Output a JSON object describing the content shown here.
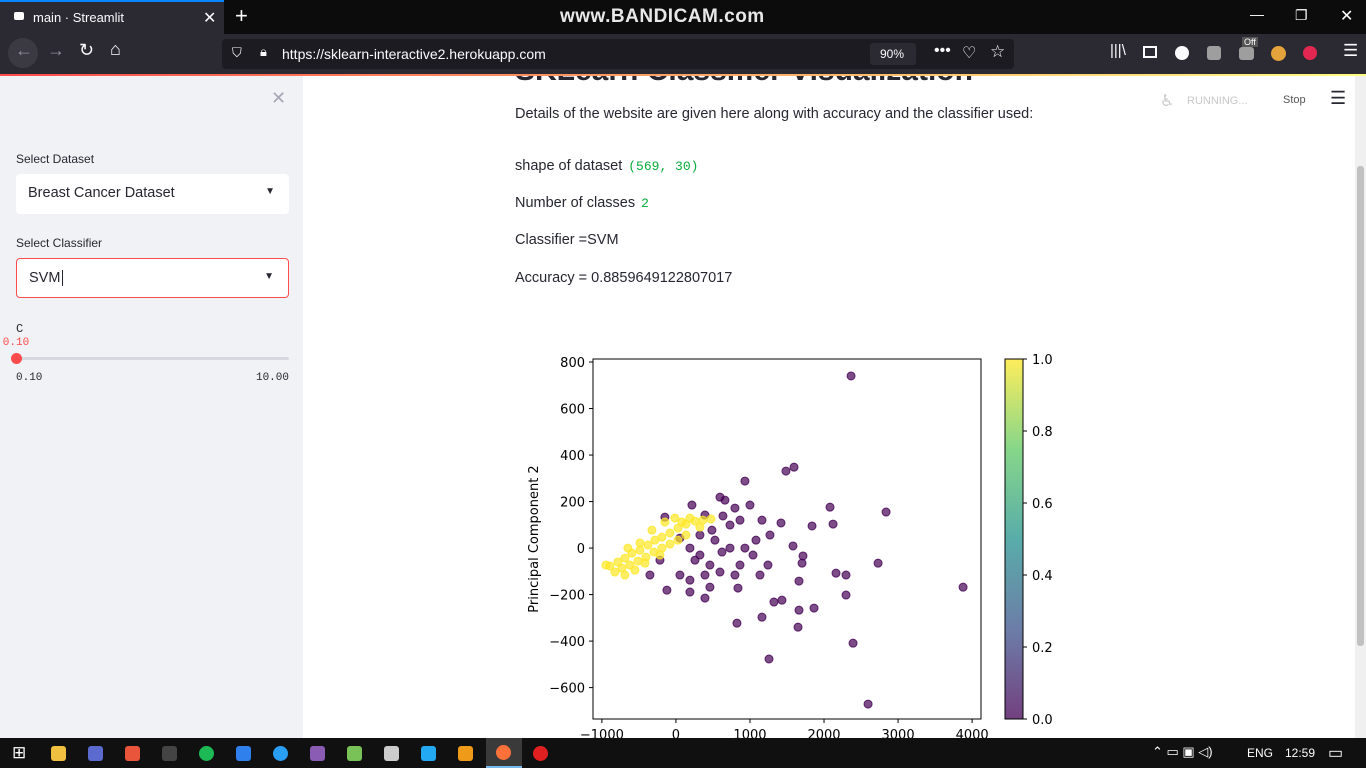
{
  "browser": {
    "tab_title": "main · Streamlit",
    "watermark": "www.BANDICAM.com",
    "url": "https://sklearn-interactive2.herokuapp.com",
    "zoom": "90%",
    "badge": "Off"
  },
  "sidebar": {
    "dataset_label": "Select Dataset",
    "dataset_value": "Breast Cancer Dataset",
    "classifier_label": "Select Classifier",
    "classifier_value": "SVM",
    "slider": {
      "label": "C",
      "value": {
        "value": 0.1,
        "label": "0.10"
      },
      "min": {
        "value": 0.1,
        "label": "0.10"
      },
      "max": {
        "value": 10,
        "label": "10.00"
      }
    }
  },
  "main": {
    "title": "SKLearn Classifier Visualization",
    "status": "RUNNING...",
    "stop": "Stop",
    "description": "Details of the website are given here along with accuracy and the classifier used:",
    "shape_label": "shape of dataset",
    "shape_value": "(569, 30)",
    "classes_label": "Number of classes",
    "classes_value": "2",
    "classifier": "Classifier =SVM",
    "accuracy": "Accuracy = 0.8859649122807017"
  },
  "taskbar": {
    "language": "ENG",
    "time": "12:59"
  },
  "chart_data": {
    "type": "scatter",
    "ylabel": "Principal Component 2",
    "xlim": [
      -1120,
      4120
    ],
    "ylim": [
      -735,
      813
    ],
    "xticks": [
      {
        "value": -1000,
        "label": "−1000"
      },
      0,
      1000,
      2000,
      3000,
      4000
    ],
    "yticks": [
      {
        "value": -600,
        "label": "−600"
      },
      {
        "value": -400,
        "label": "−400"
      },
      {
        "value": -200,
        "label": "−200"
      },
      0,
      200,
      400,
      600,
      800
    ],
    "series": [
      {
        "color": "#440154",
        "x": [
          2365,
          2838,
          3878,
          2595,
          2392,
          1257,
          824,
          2730,
          2297,
          2297,
          2081,
          2122,
          1838,
          1486,
          1595,
          932,
          2162,
          1662,
          1662,
          1432,
          1324,
          1865,
          1162,
          1649,
          1716,
          1703,
          1581,
          1419,
          1162,
          662,
          595,
          635,
          865,
          1081,
          932,
          730,
          527,
          324,
          189,
          257,
          459,
          392,
          189,
          54,
          -122,
          189,
          459,
          595,
          797,
          865,
          1243,
          1135,
          730,
          392,
          216,
          -149,
          54,
          -216,
          324,
          1000,
          797,
          486,
          1270,
          1041,
          622,
          -351,
          392,
          838
        ],
        "y": [
          740,
          155,
          -168,
          -671,
          -409,
          -477,
          -323,
          -65,
          -116,
          -202,
          176,
          103,
          95,
          331,
          348,
          288,
          -108,
          -142,
          -267,
          -224,
          -232,
          -258,
          -297,
          -340,
          -34,
          -65,
          9,
          108,
          120,
          206,
          219,
          138,
          120,
          34,
          0,
          0,
          34,
          56,
          0,
          -52,
          -73,
          -116,
          -138,
          -116,
          -181,
          -189,
          -168,
          -103,
          -116,
          -73,
          -73,
          -116,
          99,
          142,
          185,
          133,
          43,
          -52,
          -30,
          185,
          172,
          77,
          56,
          -30,
          -17,
          -116,
          -215,
          -172
        ]
      },
      {
        "color": "#fde725",
        "x": [
          -892,
          -784,
          -689,
          -595,
          -486,
          -378,
          -284,
          -189,
          -81,
          27,
          135,
          257,
          365,
          473,
          -824,
          -730,
          -622,
          -514,
          -405,
          -297,
          -189,
          -81,
          27,
          135,
          -946,
          -649,
          -486,
          -324,
          -149,
          -14,
          189,
          -216,
          -419,
          -554,
          -689,
          81,
          324
        ],
        "y": [
          -77,
          -60,
          -43,
          -22,
          -9,
          13,
          34,
          47,
          65,
          86,
          103,
          116,
          120,
          125,
          -103,
          -86,
          -73,
          -56,
          -39,
          -17,
          0,
          17,
          34,
          56,
          -73,
          0,
          22,
          77,
          112,
          129,
          129,
          -30,
          -65,
          -95,
          -116,
          112,
          90
        ]
      }
    ],
    "colorbar": {
      "clim": [
        0,
        1
      ],
      "ticks": [
        {
          "value": 0,
          "label": "0.0"
        },
        0.2,
        0.4,
        0.6,
        0.8,
        {
          "value": 1,
          "label": "1.0"
        }
      ],
      "colors": [
        "#440154",
        "#3b528b",
        "#21918c",
        "#5ec962",
        "#fde725"
      ]
    }
  }
}
